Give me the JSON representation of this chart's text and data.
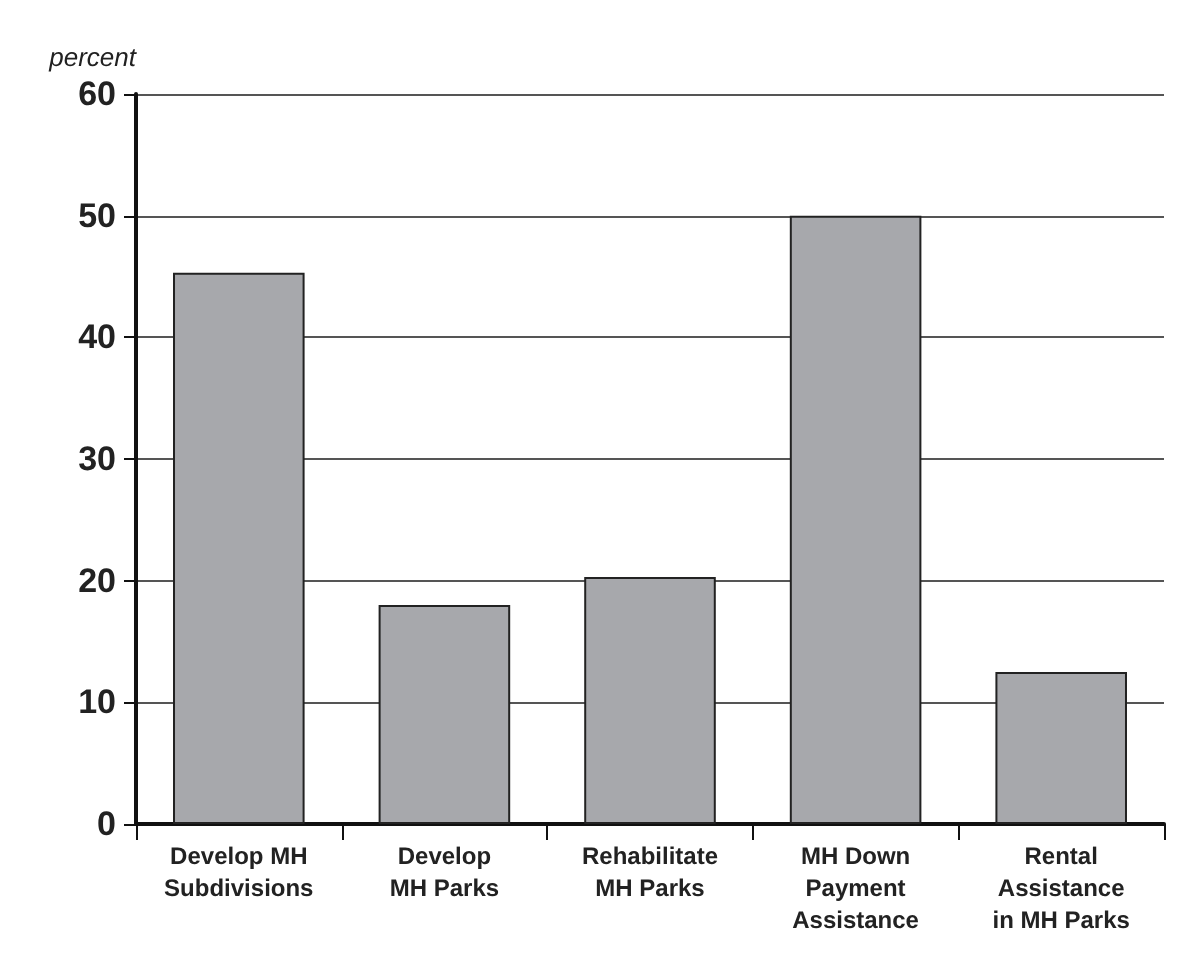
{
  "chart_data": {
    "type": "bar",
    "ylabel": "percent",
    "categories": [
      "Develop MH\nSubdivisions",
      "Develop\nMH Parks",
      "Rehabilitate\nMH Parks",
      "MH Down\nPayment\nAssistance",
      "Rental\nAssistance\nin MH Parks"
    ],
    "values": [
      45.3,
      18,
      20.3,
      50,
      12.5
    ],
    "color": "#a7a8ac",
    "ylim": [
      0,
      60
    ],
    "yticks": [
      0,
      10,
      20,
      30,
      40,
      50,
      60
    ],
    "grid": "y"
  }
}
